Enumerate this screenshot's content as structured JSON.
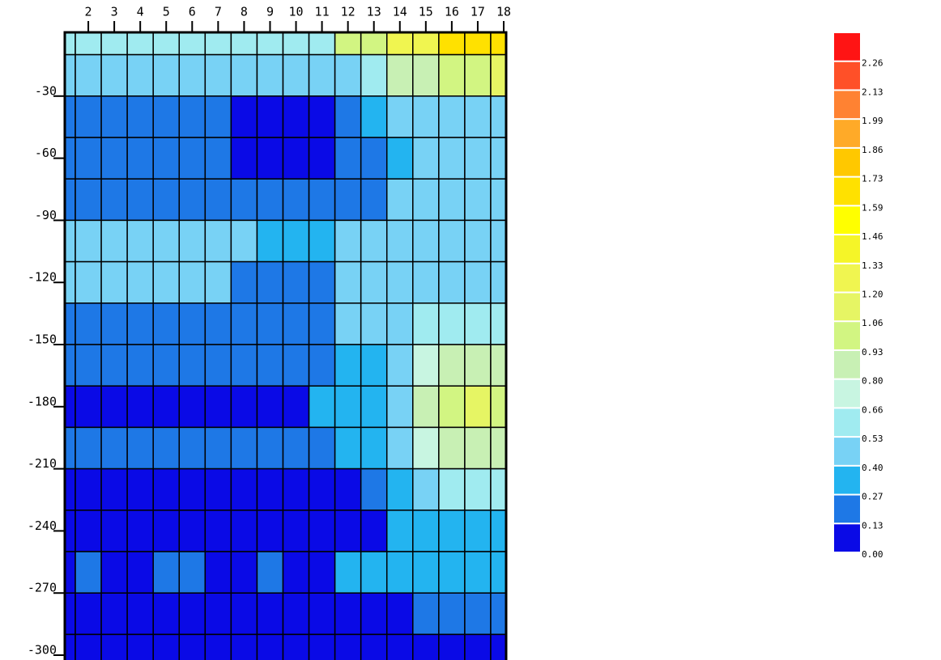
{
  "chart_data": {
    "type": "heatmap",
    "x": [
      1,
      2,
      3,
      4,
      5,
      6,
      7,
      8,
      9,
      10,
      11,
      12,
      13,
      14,
      15,
      16,
      17,
      18
    ],
    "y": [
      0,
      -20,
      -40,
      -60,
      -80,
      -100,
      -120,
      -140,
      -160,
      -180,
      -200,
      -220,
      -240,
      -260,
      -280,
      -300
    ],
    "values": [
      [
        0.6,
        0.6,
        0.6,
        0.6,
        0.6,
        0.6,
        0.6,
        0.6,
        0.6,
        0.6,
        0.6,
        1.0,
        1.0,
        1.3,
        1.3,
        1.7,
        1.7,
        1.7
      ],
      [
        0.45,
        0.45,
        0.45,
        0.45,
        0.45,
        0.45,
        0.45,
        0.45,
        0.45,
        0.45,
        0.45,
        0.5,
        0.6,
        0.8,
        0.9,
        1.0,
        1.0,
        1.1
      ],
      [
        0.2,
        0.2,
        0.2,
        0.2,
        0.2,
        0.2,
        0.2,
        0.1,
        0.1,
        0.1,
        0.1,
        0.2,
        0.3,
        0.45,
        0.45,
        0.45,
        0.45,
        0.45
      ],
      [
        0.2,
        0.2,
        0.2,
        0.2,
        0.2,
        0.2,
        0.2,
        0.1,
        0.1,
        0.1,
        0.1,
        0.25,
        0.25,
        0.35,
        0.5,
        0.5,
        0.5,
        0.5
      ],
      [
        0.2,
        0.2,
        0.2,
        0.2,
        0.2,
        0.2,
        0.2,
        0.2,
        0.2,
        0.2,
        0.2,
        0.2,
        0.2,
        0.4,
        0.4,
        0.4,
        0.4,
        0.4
      ],
      [
        0.45,
        0.45,
        0.45,
        0.45,
        0.45,
        0.45,
        0.45,
        0.45,
        0.3,
        0.3,
        0.3,
        0.4,
        0.4,
        0.4,
        0.4,
        0.4,
        0.4,
        0.4
      ],
      [
        0.45,
        0.45,
        0.45,
        0.45,
        0.45,
        0.45,
        0.45,
        0.2,
        0.2,
        0.2,
        0.2,
        0.4,
        0.4,
        0.4,
        0.4,
        0.4,
        0.5,
        0.5
      ],
      [
        0.2,
        0.2,
        0.2,
        0.2,
        0.2,
        0.2,
        0.2,
        0.2,
        0.2,
        0.2,
        0.2,
        0.4,
        0.4,
        0.4,
        0.6,
        0.6,
        0.6,
        0.6
      ],
      [
        0.2,
        0.2,
        0.2,
        0.2,
        0.2,
        0.2,
        0.2,
        0.2,
        0.2,
        0.2,
        0.2,
        0.35,
        0.35,
        0.5,
        0.7,
        0.9,
        0.9,
        0.9
      ],
      [
        0.1,
        0.1,
        0.1,
        0.1,
        0.1,
        0.1,
        0.1,
        0.1,
        0.1,
        0.1,
        0.35,
        0.35,
        0.35,
        0.5,
        0.8,
        1.0,
        1.1,
        1.0
      ],
      [
        0.2,
        0.2,
        0.2,
        0.2,
        0.2,
        0.2,
        0.2,
        0.2,
        0.2,
        0.2,
        0.2,
        0.3,
        0.3,
        0.45,
        0.7,
        0.85,
        0.85,
        0.85
      ],
      [
        0.1,
        0.1,
        0.1,
        0.1,
        0.1,
        0.1,
        0.1,
        0.1,
        0.1,
        0.1,
        0.1,
        0.1,
        0.2,
        0.35,
        0.5,
        0.55,
        0.55,
        0.55
      ],
      [
        0.1,
        0.1,
        0.1,
        0.1,
        0.1,
        0.1,
        0.1,
        0.1,
        0.1,
        0.1,
        0.1,
        0.1,
        0.1,
        0.35,
        0.35,
        0.35,
        0.35,
        0.35
      ],
      [
        0.1,
        0.2,
        0.1,
        0.1,
        0.2,
        0.2,
        0.1,
        0.1,
        0.2,
        0.1,
        0.1,
        0.3,
        0.3,
        0.3,
        0.3,
        0.3,
        0.3,
        0.3
      ],
      [
        0.1,
        0.1,
        0.1,
        0.1,
        0.1,
        0.1,
        0.1,
        0.1,
        0.1,
        0.1,
        0.1,
        0.1,
        0.1,
        0.1,
        0.2,
        0.2,
        0.2,
        0.2
      ],
      [
        0.05,
        0.05,
        0.05,
        0.05,
        0.05,
        0.05,
        0.05,
        0.05,
        0.05,
        0.05,
        0.05,
        0.05,
        0.05,
        0.05,
        0.05,
        0.05,
        0.05,
        0.05
      ]
    ],
    "xlim": [
      1,
      18
    ],
    "ylim": [
      -300,
      0
    ],
    "xticks": [
      2,
      3,
      4,
      5,
      6,
      7,
      8,
      9,
      10,
      11,
      12,
      13,
      14,
      15,
      16,
      17,
      18
    ],
    "yticks": [
      -30,
      -60,
      -90,
      -120,
      -150,
      -180,
      -210,
      -240,
      -270,
      -300
    ],
    "colorbar": {
      "levels": [
        {
          "value": 0,
          "label": "0.00"
        },
        0.13,
        0.27,
        {
          "value": 0.4,
          "label": "0.40"
        },
        0.53,
        0.66,
        {
          "value": 0.8,
          "label": "0.80"
        },
        0.93,
        1.06,
        {
          "value": 1.2,
          "label": "1.20"
        },
        1.33,
        1.46,
        1.59,
        1.73,
        1.86,
        1.99,
        2.13,
        2.26
      ],
      "colors": [
        "#0a0ae6",
        "#1e78e6",
        "#23b4f0",
        "#78d2f5",
        "#a0ebf0",
        "#c8f5e1",
        "#c8f0b4",
        "#d2f582",
        "#e6f564",
        "#f0f550",
        "#f5f528",
        "#ffff00",
        "#ffe100",
        "#ffc800",
        "#ffaa28",
        "#ff8232",
        "#ff5028",
        "#ff1414"
      ]
    }
  }
}
